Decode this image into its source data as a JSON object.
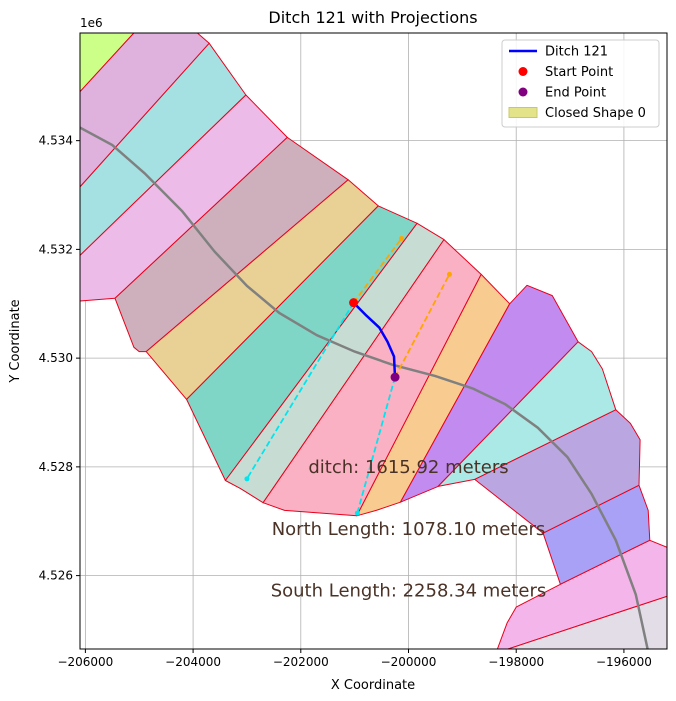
{
  "chart_data": {
    "type": "line",
    "title": "Ditch 121 with Projections",
    "xlabel": "X Coordinate",
    "ylabel": "Y Coordinate",
    "xlim": [
      -206100,
      -195200
    ],
    "ylim": [
      4524650,
      4535980
    ],
    "y_offset_label": "1e6",
    "x_ticks": [
      -206000,
      -204000,
      -202000,
      -200000,
      -198000,
      -196000
    ],
    "x_tick_labels": [
      "−206000",
      "−204000",
      "−202000",
      "−200000",
      "−198000",
      "−196000"
    ],
    "y_ticks": [
      4526000,
      4528000,
      4530000,
      4532000,
      4534000
    ],
    "y_tick_labels": [
      "4.526",
      "4.528",
      "4.530",
      "4.532",
      "4.534"
    ],
    "grid": true,
    "legend_position": "top-right",
    "legend": [
      {
        "label": "Ditch 121",
        "kind": "line",
        "color": "#0000ff"
      },
      {
        "label": "Start Point",
        "kind": "point",
        "color": "#ff0000"
      },
      {
        "label": "End Point",
        "kind": "point",
        "color": "#800080"
      },
      {
        "label": "Closed Shape 0",
        "kind": "patch",
        "color": "#e3e38a"
      }
    ],
    "ditch": {
      "name": "Ditch 121",
      "color": "#0000ff",
      "points": [
        [
          -201020,
          4531020
        ],
        [
          -200780,
          4530780
        ],
        [
          -200540,
          4530560
        ],
        [
          -200390,
          4530300
        ],
        [
          -200270,
          4530030
        ],
        [
          -200250,
          4529650
        ]
      ]
    },
    "start_point": {
      "x": -201020,
      "y": 4531020,
      "color": "#ff0000"
    },
    "end_point": {
      "x": -200250,
      "y": 4529650,
      "color": "#800080"
    },
    "road": {
      "color": "#808080",
      "points": [
        [
          -206100,
          4534240
        ],
        [
          -205500,
          4533920
        ],
        [
          -204900,
          4533400
        ],
        [
          -204200,
          4532700
        ],
        [
          -203600,
          4531960
        ],
        [
          -203000,
          4531330
        ],
        [
          -202400,
          4530830
        ],
        [
          -201700,
          4530420
        ],
        [
          -201000,
          4530120
        ],
        [
          -200300,
          4529880
        ],
        [
          -199500,
          4529670
        ],
        [
          -198800,
          4529440
        ],
        [
          -198200,
          4529150
        ],
        [
          -197600,
          4528720
        ],
        [
          -197050,
          4528180
        ],
        [
          -196600,
          4527500
        ],
        [
          -196150,
          4526650
        ],
        [
          -195780,
          4525650
        ],
        [
          -195560,
          4524650
        ]
      ]
    },
    "projections": [
      {
        "name": "north-start",
        "color": "#ffa500",
        "points": [
          [
            -201020,
            4531020
          ],
          [
            -200130,
            4532200
          ]
        ]
      },
      {
        "name": "north-end",
        "color": "#ffa500",
        "points": [
          [
            -200250,
            4529650
          ],
          [
            -199240,
            4531540
          ]
        ]
      },
      {
        "name": "south-start",
        "color": "#00e5ee",
        "points": [
          [
            -201020,
            4531020
          ],
          [
            -203000,
            4527780
          ]
        ]
      },
      {
        "name": "south-end",
        "color": "#00e5ee",
        "points": [
          [
            -200250,
            4529650
          ],
          [
            -200950,
            4527150
          ]
        ]
      }
    ],
    "polygons": [
      {
        "color": "#ccff88",
        "points": [
          [
            -206100,
            4535980
          ],
          [
            -205100,
            4535980
          ],
          [
            -206100,
            4534900
          ]
        ]
      },
      {
        "color": "#dfb1dd",
        "points": [
          [
            -206100,
            4534900
          ],
          [
            -205100,
            4535980
          ],
          [
            -203920,
            4535980
          ],
          [
            -203700,
            4535790
          ],
          [
            -206100,
            4533150
          ]
        ]
      },
      {
        "color": "#a5e1e3",
        "points": [
          [
            -206100,
            4533150
          ],
          [
            -203700,
            4535790
          ],
          [
            -203020,
            4534840
          ],
          [
            -206100,
            4531890
          ]
        ]
      },
      {
        "color": "#ecbbe8",
        "points": [
          [
            -206100,
            4531890
          ],
          [
            -203020,
            4534840
          ],
          [
            -202250,
            4534060
          ],
          [
            -205450,
            4531100
          ],
          [
            -206100,
            4531050
          ]
        ]
      },
      {
        "color": "#cdb0bc",
        "points": [
          [
            -205450,
            4531100
          ],
          [
            -202250,
            4534060
          ],
          [
            -201120,
            4533280
          ],
          [
            -204870,
            4530120
          ],
          [
            -205000,
            4530120
          ],
          [
            -205100,
            4530200
          ]
        ]
      },
      {
        "color": "#e9d196",
        "points": [
          [
            -204870,
            4530120
          ],
          [
            -201120,
            4533280
          ],
          [
            -200560,
            4532800
          ],
          [
            -204120,
            4529240
          ]
        ]
      },
      {
        "color": "#7fd6c6",
        "points": [
          [
            -204120,
            4529240
          ],
          [
            -200560,
            4532800
          ],
          [
            -199840,
            4532480
          ],
          [
            -203400,
            4527750
          ]
        ]
      },
      {
        "color": "#c7ddd4",
        "points": [
          [
            -203400,
            4527750
          ],
          [
            -199840,
            4532480
          ],
          [
            -199340,
            4532180
          ],
          [
            -202700,
            4527340
          ],
          [
            -203120,
            4527600
          ]
        ]
      },
      {
        "color": "#fab1c4",
        "points": [
          [
            -202700,
            4527340
          ],
          [
            -199340,
            4532180
          ],
          [
            -198650,
            4531540
          ],
          [
            -200960,
            4527100
          ],
          [
            -202300,
            4527200
          ]
        ]
      },
      {
        "color": "#f8cc91",
        "points": [
          [
            -200960,
            4527100
          ],
          [
            -198650,
            4531540
          ],
          [
            -198120,
            4531000
          ],
          [
            -200150,
            4527350
          ],
          [
            -200600,
            4527200
          ]
        ]
      },
      {
        "color": "#c28bf0",
        "points": [
          [
            -200150,
            4527350
          ],
          [
            -198120,
            4531000
          ],
          [
            -197800,
            4531340
          ],
          [
            -197330,
            4531150
          ],
          [
            -196850,
            4530300
          ],
          [
            -199450,
            4527640
          ]
        ]
      },
      {
        "color": "#aae9e6",
        "points": [
          [
            -199450,
            4527640
          ],
          [
            -196850,
            4530300
          ],
          [
            -196600,
            4530120
          ],
          [
            -196400,
            4529800
          ],
          [
            -196150,
            4529050
          ],
          [
            -198770,
            4527770
          ]
        ]
      },
      {
        "color": "#baa6e1",
        "points": [
          [
            -198770,
            4527770
          ],
          [
            -196150,
            4529050
          ],
          [
            -195880,
            4528800
          ],
          [
            -195700,
            4528500
          ],
          [
            -195720,
            4527660
          ],
          [
            -197500,
            4526780
          ]
        ]
      },
      {
        "color": "#a8a1f6",
        "points": [
          [
            -197500,
            4526780
          ],
          [
            -195720,
            4527660
          ],
          [
            -195550,
            4527200
          ],
          [
            -195520,
            4526650
          ],
          [
            -197180,
            4525840
          ]
        ]
      },
      {
        "color": "#f4b6ea",
        "points": [
          [
            -197180,
            4525840
          ],
          [
            -195520,
            4526650
          ],
          [
            -195200,
            4526520
          ],
          [
            -195200,
            4525620
          ],
          [
            -198150,
            4524650
          ],
          [
            -198350,
            4524650
          ],
          [
            -198170,
            4525130
          ],
          [
            -198000,
            4525420
          ]
        ]
      },
      {
        "color": "#e3dde7",
        "points": [
          [
            -198150,
            4524650
          ],
          [
            -195200,
            4525620
          ],
          [
            -195200,
            4524650
          ]
        ]
      }
    ],
    "annotations": [
      {
        "text": "ditch: 1615.92 meters",
        "x": -200000,
        "y": 4528000
      },
      {
        "text": "North Length: 1078.10 meters",
        "x": -200000,
        "y": 4526860
      },
      {
        "text": "South Length: 2258.34 meters",
        "x": -200000,
        "y": 4525730
      }
    ]
  }
}
